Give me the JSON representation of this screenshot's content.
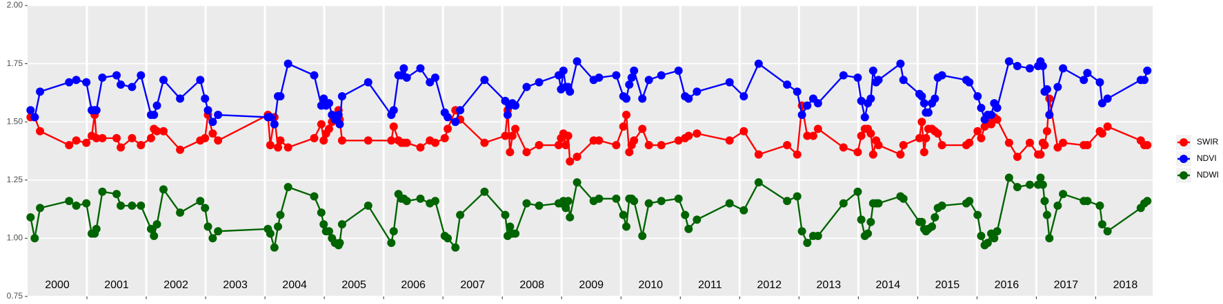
{
  "chart_data": {
    "type": "line",
    "x": [
      2000.05,
      2000.12,
      2000.21,
      2000.7,
      2000.82,
      2000.99,
      2001.08,
      2001.13,
      2001.16,
      2001.26,
      2001.5,
      2001.57,
      2001.76,
      2001.91,
      2002.08,
      2002.13,
      2002.18,
      2002.29,
      2002.57,
      2002.91,
      2002.99,
      2003.04,
      2003.12,
      2003.21,
      2004.05,
      2004.09,
      2004.16,
      2004.22,
      2004.26,
      2004.39,
      2004.83,
      2004.95,
      2004.99,
      2005.03,
      2005.08,
      2005.13,
      2005.18,
      2005.24,
      2005.26,
      2005.3,
      2005.74,
      2006.13,
      2006.17,
      2006.25,
      2006.3,
      2006.34,
      2006.39,
      2006.62,
      2006.78,
      2006.87,
      2007.03,
      2007.08,
      2007.21,
      2007.29,
      2007.7,
      2008.05,
      2008.09,
      2008.13,
      2008.17,
      2008.22,
      2008.41,
      2008.62,
      2008.95,
      2008.99,
      2009.03,
      2009.07,
      2009.11,
      2009.14,
      2009.26,
      2009.54,
      2009.63,
      2009.92,
      2010.04,
      2010.09,
      2010.14,
      2010.18,
      2010.22,
      2010.36,
      2010.47,
      2010.68,
      2010.97,
      2011.08,
      2011.14,
      2011.28,
      2011.83,
      2012.07,
      2012.32,
      2012.8,
      2012.97,
      2013.05,
      2013.14,
      2013.24,
      2013.32,
      2013.75,
      2013.99,
      2014.05,
      2014.11,
      2014.16,
      2014.21,
      2014.25,
      2014.3,
      2014.34,
      2014.71,
      2014.76,
      2015.03,
      2015.07,
      2015.11,
      2015.14,
      2015.18,
      2015.24,
      2015.29,
      2015.34,
      2015.41,
      2015.82,
      2015.87,
      2016.01,
      2016.07,
      2016.13,
      2016.18,
      2016.24,
      2016.29,
      2016.34,
      2016.54,
      2016.68,
      2016.89,
      2017.03,
      2017.07,
      2017.11,
      2017.14,
      2017.18,
      2017.22,
      2017.36,
      2017.45,
      2017.8,
      2017.86,
      2018.07,
      2018.11,
      2018.2,
      2018.76,
      2018.82,
      2018.87
    ],
    "series": [
      {
        "name": "SWIR",
        "color": "#ff0000",
        "values": [
          1.52,
          1.52,
          1.46,
          1.4,
          1.42,
          1.41,
          1.44,
          1.53,
          1.43,
          1.43,
          1.43,
          1.39,
          1.43,
          1.4,
          1.43,
          1.47,
          1.46,
          1.46,
          1.38,
          1.42,
          1.43,
          1.53,
          1.45,
          1.42,
          1.53,
          1.4,
          1.52,
          1.39,
          1.42,
          1.39,
          1.43,
          1.49,
          1.42,
          1.45,
          1.47,
          1.5,
          1.52,
          1.55,
          1.51,
          1.42,
          1.42,
          1.42,
          1.48,
          1.42,
          1.41,
          1.41,
          1.41,
          1.39,
          1.42,
          1.41,
          1.43,
          1.47,
          1.55,
          1.51,
          1.41,
          1.44,
          1.55,
          1.37,
          1.44,
          1.47,
          1.37,
          1.4,
          1.4,
          1.43,
          1.45,
          1.4,
          1.44,
          1.33,
          1.35,
          1.42,
          1.42,
          1.4,
          1.48,
          1.53,
          1.37,
          1.4,
          1.42,
          1.47,
          1.4,
          1.4,
          1.42,
          1.43,
          1.44,
          1.45,
          1.42,
          1.46,
          1.36,
          1.4,
          1.36,
          1.57,
          1.44,
          1.44,
          1.47,
          1.39,
          1.37,
          1.44,
          1.47,
          1.47,
          1.45,
          1.36,
          1.42,
          1.4,
          1.36,
          1.4,
          1.43,
          1.5,
          1.37,
          1.43,
          1.47,
          1.47,
          1.46,
          1.45,
          1.4,
          1.4,
          1.41,
          1.46,
          1.43,
          1.48,
          1.5,
          1.49,
          1.52,
          1.51,
          1.41,
          1.35,
          1.41,
          1.36,
          1.36,
          1.41,
          1.4,
          1.46,
          1.6,
          1.39,
          1.41,
          1.4,
          1.4,
          1.46,
          1.45,
          1.48,
          1.42,
          1.4,
          1.4
        ]
      },
      {
        "name": "NDVI",
        "color": "#0000ff",
        "values": [
          1.55,
          1.52,
          1.63,
          1.67,
          1.68,
          1.67,
          1.55,
          1.55,
          1.55,
          1.69,
          1.7,
          1.66,
          1.65,
          1.7,
          1.53,
          1.53,
          1.57,
          1.68,
          1.6,
          1.68,
          1.6,
          1.55,
          1.5,
          1.53,
          1.52,
          1.52,
          1.49,
          1.61,
          1.61,
          1.75,
          1.7,
          1.57,
          1.6,
          1.57,
          1.58,
          1.53,
          1.51,
          1.53,
          1.49,
          1.61,
          1.67,
          1.53,
          1.55,
          1.7,
          1.7,
          1.73,
          1.69,
          1.73,
          1.67,
          1.69,
          1.54,
          1.52,
          1.5,
          1.55,
          1.68,
          1.59,
          1.53,
          1.57,
          1.58,
          1.57,
          1.65,
          1.67,
          1.7,
          1.64,
          1.72,
          1.65,
          1.65,
          1.63,
          1.76,
          1.68,
          1.69,
          1.7,
          1.61,
          1.6,
          1.66,
          1.69,
          1.72,
          1.6,
          1.68,
          1.7,
          1.72,
          1.61,
          1.6,
          1.63,
          1.67,
          1.61,
          1.75,
          1.66,
          1.63,
          1.53,
          1.57,
          1.6,
          1.58,
          1.7,
          1.69,
          1.59,
          1.52,
          1.58,
          1.6,
          1.72,
          1.67,
          1.68,
          1.75,
          1.68,
          1.62,
          1.61,
          1.58,
          1.54,
          1.54,
          1.58,
          1.6,
          1.69,
          1.7,
          1.68,
          1.67,
          1.61,
          1.56,
          1.51,
          1.53,
          1.53,
          1.58,
          1.56,
          1.76,
          1.74,
          1.73,
          1.74,
          1.76,
          1.74,
          1.63,
          1.64,
          1.53,
          1.65,
          1.73,
          1.68,
          1.71,
          1.67,
          1.58,
          1.6,
          1.68,
          1.68,
          1.72
        ]
      },
      {
        "name": "NDWI",
        "color": "#006400",
        "values": [
          1.09,
          1.0,
          1.13,
          1.16,
          1.14,
          1.15,
          1.02,
          1.02,
          1.04,
          1.2,
          1.19,
          1.14,
          1.14,
          1.14,
          1.04,
          1.01,
          1.06,
          1.21,
          1.11,
          1.16,
          1.13,
          1.05,
          1.0,
          1.03,
          1.04,
          1.02,
          0.96,
          1.05,
          1.1,
          1.22,
          1.18,
          1.11,
          1.06,
          1.03,
          1.03,
          1.0,
          0.98,
          0.97,
          0.98,
          1.06,
          1.14,
          0.98,
          1.03,
          1.19,
          1.17,
          1.17,
          1.16,
          1.17,
          1.15,
          1.16,
          1.01,
          1.0,
          0.96,
          1.1,
          1.2,
          1.1,
          1.01,
          1.05,
          1.02,
          1.02,
          1.15,
          1.14,
          1.15,
          1.15,
          1.16,
          1.13,
          1.16,
          1.09,
          1.24,
          1.16,
          1.17,
          1.17,
          1.1,
          1.05,
          1.17,
          1.17,
          1.16,
          1.01,
          1.15,
          1.16,
          1.17,
          1.1,
          1.04,
          1.08,
          1.15,
          1.12,
          1.24,
          1.16,
          1.18,
          1.03,
          0.98,
          1.01,
          1.01,
          1.15,
          1.2,
          1.08,
          1.01,
          1.02,
          1.07,
          1.15,
          1.15,
          1.15,
          1.18,
          1.17,
          1.07,
          1.07,
          1.04,
          1.03,
          1.04,
          1.05,
          1.09,
          1.13,
          1.14,
          1.15,
          1.16,
          1.1,
          1.01,
          0.97,
          0.98,
          1.02,
          1.0,
          1.03,
          1.26,
          1.22,
          1.23,
          1.23,
          1.26,
          1.23,
          1.16,
          1.1,
          1.0,
          1.14,
          1.19,
          1.16,
          1.16,
          1.14,
          1.06,
          1.03,
          1.13,
          1.15,
          1.16
        ]
      }
    ],
    "xlim": [
      2000,
      2018.96
    ],
    "xticks": [
      {
        "value": 2000,
        "label": "2000"
      },
      {
        "value": 2001,
        "label": "2001"
      },
      {
        "value": 2002,
        "label": "2002"
      },
      {
        "value": 2003,
        "label": "2003"
      },
      {
        "value": 2004,
        "label": "2004"
      },
      {
        "value": 2005,
        "label": "2005"
      },
      {
        "value": 2006,
        "label": "2006"
      },
      {
        "value": 2007,
        "label": "2007"
      },
      {
        "value": 2008,
        "label": "2008"
      },
      {
        "value": 2009,
        "label": "2009"
      },
      {
        "value": 2010,
        "label": "2010"
      },
      {
        "value": 2011,
        "label": "2011"
      },
      {
        "value": 2012,
        "label": "2012"
      },
      {
        "value": 2013,
        "label": "2013"
      },
      {
        "value": 2014,
        "label": "2014"
      },
      {
        "value": 2015,
        "label": "2015"
      },
      {
        "value": 2016,
        "label": "2016"
      },
      {
        "value": 2017,
        "label": "2017"
      },
      {
        "value": 2018,
        "label": "2018"
      }
    ],
    "ylim": [
      0.75,
      2.0
    ],
    "yticks": [
      0.75,
      {
        "value": 1.0,
        "label": "1.00"
      },
      1.25,
      {
        "value": 1.5,
        "label": "1.50"
      },
      1.75,
      {
        "value": 2.0,
        "label": "2.00"
      }
    ],
    "grid": true,
    "legend": "right"
  }
}
